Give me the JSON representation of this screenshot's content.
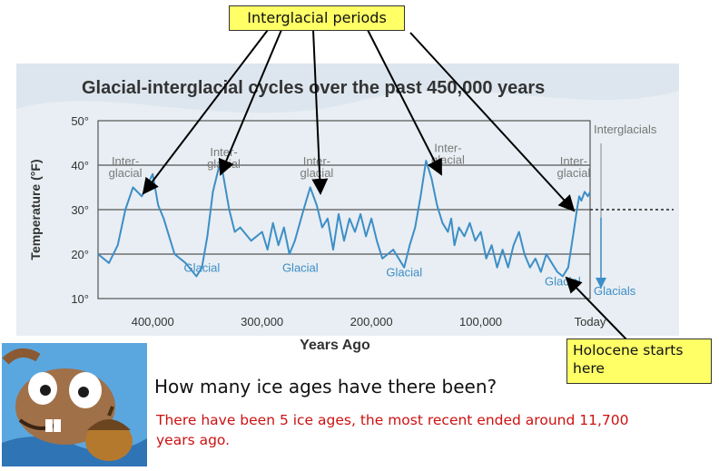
{
  "callouts": {
    "interglacial": "Interglacial periods",
    "holocene": "Holocene starts here"
  },
  "question": "How many ice ages have there been?",
  "answer": "There have been 5 ice ages, the most recent ended around 11,700 years ago.",
  "colors": {
    "line": "#3d8ec6",
    "callout_bg": "#ffff66",
    "answer": "#cc1111",
    "chart_bg": "#e8eef3"
  },
  "icons": {
    "mascot": "scrat-squirrel-with-acorn"
  },
  "chart_data": {
    "type": "line",
    "title": "Glacial-interglacial cycles over the past 450,000 years",
    "xlabel": "Years Ago",
    "ylabel": "Temperature (°F)",
    "xlim": [
      450000,
      0
    ],
    "ylim": [
      10,
      50
    ],
    "x_ticks": [
      400000,
      300000,
      200000,
      100000,
      0
    ],
    "x_tick_labels": [
      "400,000",
      "300,000",
      "200,000",
      "100,000",
      "Today"
    ],
    "y_ticks": [
      10,
      20,
      30,
      40,
      50
    ],
    "y_tick_labels": [
      "10°",
      "20°",
      "30°",
      "40°",
      "50°"
    ],
    "gridlines_y": [
      20,
      30,
      40
    ],
    "series": [
      {
        "x": [
          450000,
          440000,
          432000,
          425000,
          418000,
          410000,
          400000,
          395000,
          390000,
          385000,
          380000,
          370000,
          360000,
          355000,
          350000,
          345000,
          338000,
          335000,
          330000,
          325000,
          320000,
          310000,
          300000,
          295000,
          290000,
          285000,
          280000,
          275000,
          270000,
          262000,
          256000,
          250000,
          245000,
          240000,
          235000,
          230000,
          225000,
          220000,
          215000,
          210000,
          205000,
          200000,
          195000,
          190000,
          180000,
          170000,
          165000,
          160000,
          155000,
          150000,
          145000,
          140000,
          135000,
          130000,
          127000,
          124000,
          120000,
          115000,
          110000,
          105000,
          100000,
          95000,
          90000,
          85000,
          80000,
          75000,
          70000,
          65000,
          60000,
          55000,
          50000,
          45000,
          40000,
          35000,
          30000,
          25000,
          20000,
          15000,
          12000,
          10000,
          8000,
          5000,
          2000,
          0
        ],
        "y": [
          20,
          18,
          22,
          30,
          35,
          33,
          38,
          31,
          28,
          24,
          20,
          18,
          15,
          17,
          24,
          34,
          41,
          37,
          30,
          25,
          26,
          23,
          25,
          21,
          27,
          22,
          26,
          20,
          23,
          30,
          35,
          31,
          26,
          28,
          21,
          29,
          23,
          28,
          25,
          29,
          24,
          28,
          23,
          19,
          21,
          17,
          22,
          26,
          33,
          41,
          37,
          31,
          27,
          25,
          28,
          22,
          26,
          24,
          27,
          23,
          25,
          19,
          22,
          17,
          21,
          17,
          22,
          25,
          20,
          17,
          19,
          16,
          20,
          18,
          16,
          15,
          17,
          25,
          30,
          33,
          32,
          34,
          33,
          34
        ]
      }
    ],
    "annotations": [
      {
        "text": "Inter-glacial",
        "x": 425000,
        "y": 40
      },
      {
        "text": "Inter-glacial",
        "x": 335000,
        "y": 42
      },
      {
        "text": "Inter-glacial",
        "x": 250000,
        "y": 40
      },
      {
        "text": "Inter-glacial",
        "x": 130000,
        "y": 43
      },
      {
        "text": "Inter-glacial",
        "x": 15000,
        "y": 40
      },
      {
        "text": "Glacial",
        "x": 355000,
        "y": 16
      },
      {
        "text": "Glacial",
        "x": 265000,
        "y": 16
      },
      {
        "text": "Glacial",
        "x": 170000,
        "y": 15
      },
      {
        "text": "Glacial",
        "x": 25000,
        "y": 13
      }
    ],
    "side_labels": {
      "top": "Interglacials",
      "bottom": "Glacials"
    }
  }
}
